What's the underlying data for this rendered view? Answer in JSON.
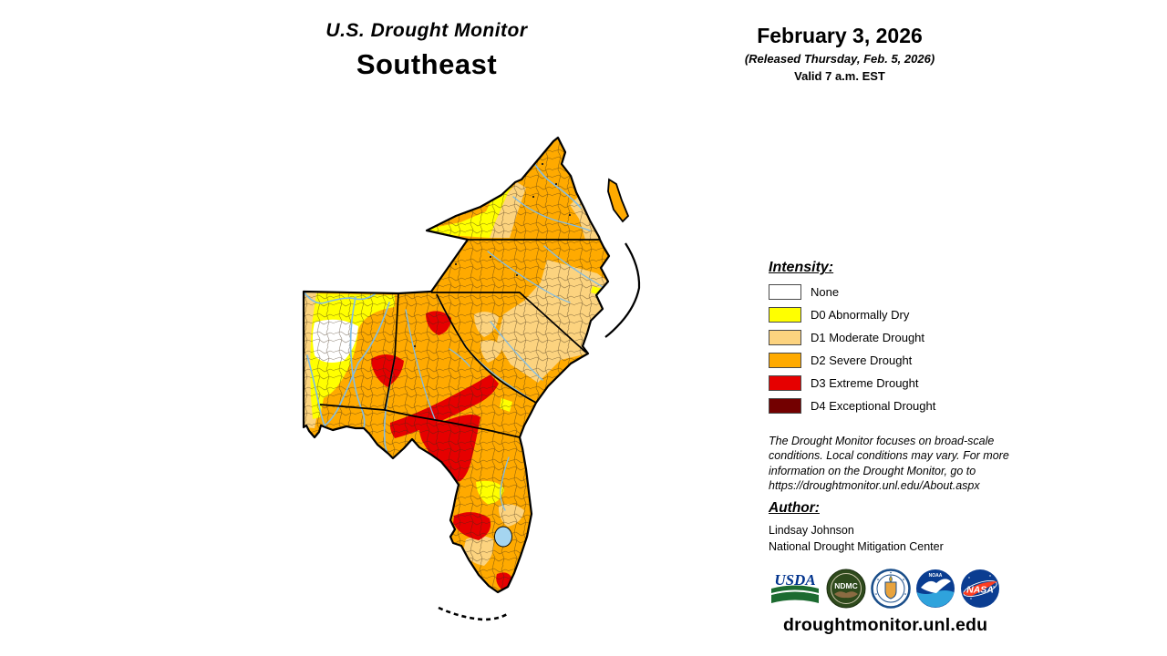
{
  "title": {
    "line1": "U.S. Drought Monitor",
    "line2": "Southeast"
  },
  "date_block": {
    "date": "February 3, 2026",
    "released": "(Released Thursday, Feb. 5, 2026)",
    "valid": "Valid 7 a.m. EST"
  },
  "legend": {
    "heading": "Intensity:",
    "items": [
      {
        "label": "None",
        "color": "#FFFFFF"
      },
      {
        "label": "D0 Abnormally Dry",
        "color": "#FFFF00"
      },
      {
        "label": "D1 Moderate Drought",
        "color": "#FCD37F"
      },
      {
        "label": "D2 Severe Drought",
        "color": "#FFAA00"
      },
      {
        "label": "D3 Extreme Drought",
        "color": "#E60000"
      },
      {
        "label": "D4 Exceptional Drought",
        "color": "#730000"
      }
    ]
  },
  "disclaimer": "The Drought Monitor focuses on broad-scale conditions. Local conditions may vary. For more information on the Drought Monitor, go to https://droughtmonitor.unl.edu/About.aspx",
  "author_block": {
    "heading": "Author:",
    "name": "Lindsay Johnson",
    "org": "National Drought Mitigation Center"
  },
  "footer": {
    "url": "droughtmonitor.unl.edu"
  },
  "logos": {
    "usda": "USDA",
    "ndmc": "NDMC",
    "noaa": "NOAA",
    "nasa": "NASA"
  },
  "map": {
    "colors": {
      "none": "#FFFFFF",
      "d0": "#FFFF00",
      "d1": "#FCD37F",
      "d2": "#FFAA00",
      "d3": "#E60000",
      "d4": "#730000",
      "water": "#A5D5F0",
      "river": "#7FBCE6",
      "border": "#000000"
    }
  }
}
